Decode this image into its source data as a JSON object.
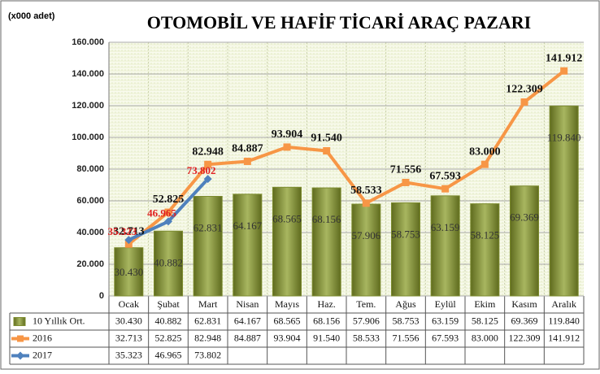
{
  "chart_data": {
    "type": "bar",
    "title": "OTOMOBİL VE HAFİF TİCARİ ARAÇ PAZARI",
    "y_axis_label": "(x000 adet)",
    "categories": [
      "Ocak",
      "Şubat",
      "Mart",
      "Nisan",
      "Mayıs",
      "Haz.",
      "Tem.",
      "Ağus",
      "Eylül",
      "Ekim",
      "Kasım",
      "Aralık"
    ],
    "series": [
      {
        "name": "10 Yıllık Ort.",
        "type": "bar",
        "color": "#7d8c2f",
        "values": [
          30430,
          40882,
          62831,
          64167,
          68565,
          68156,
          57906,
          58753,
          63159,
          58125,
          69369,
          119840
        ],
        "value_labels": [
          "30.430",
          "40.882",
          "62.831",
          "64.167",
          "68.565",
          "68.156",
          "57.906",
          "58.753",
          "63.159",
          "58.125",
          "69.369",
          "119.840"
        ]
      },
      {
        "name": "2016",
        "type": "line",
        "color": "#f79646",
        "values": [
          32713,
          52825,
          82948,
          84887,
          93904,
          91540,
          58533,
          71556,
          67593,
          83000,
          122309,
          141912
        ],
        "value_labels": [
          "32.713",
          "52.825",
          "82.948",
          "84.887",
          "93.904",
          "91.540",
          "58.533",
          "71.556",
          "67.593",
          "83.000",
          "122.309",
          "141.912"
        ]
      },
      {
        "name": "2017",
        "type": "line",
        "color": "#4f81bd",
        "values": [
          35323,
          46965,
          73802,
          null,
          null,
          null,
          null,
          null,
          null,
          null,
          null,
          null
        ],
        "value_labels": [
          "35.323",
          "46.965",
          "73.802",
          null,
          null,
          null,
          null,
          null,
          null,
          null,
          null,
          null
        ]
      }
    ],
    "ylim": [
      0,
      160000
    ],
    "yticks": [
      0,
      {
        "value": 20000,
        "label": "20.000"
      },
      {
        "value": 40000,
        "label": "40.000"
      },
      {
        "value": 60000,
        "label": "60.000"
      },
      {
        "value": 80000,
        "label": "80.000"
      },
      {
        "value": 100000,
        "label": "100.000"
      },
      {
        "value": 120000,
        "label": "120.000"
      },
      {
        "value": 140000,
        "label": "140.000"
      },
      {
        "value": 160000,
        "label": "160.000"
      }
    ],
    "grid": true
  }
}
